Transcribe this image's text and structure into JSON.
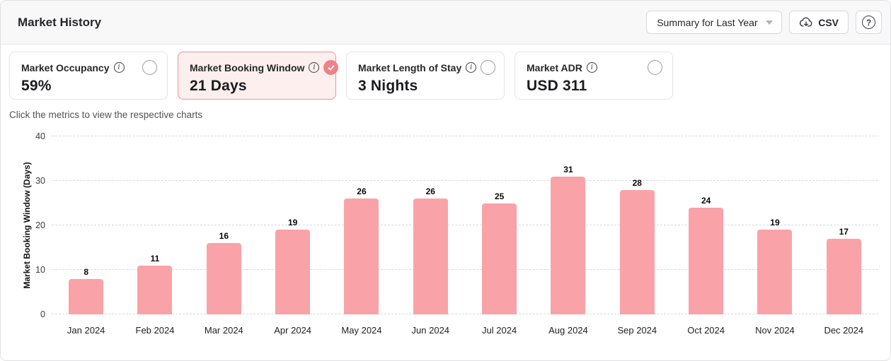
{
  "panel": {
    "title": "Market History"
  },
  "toolbar": {
    "period_dropdown": {
      "value": "Summary for Last Year"
    },
    "csv_button": {
      "label": "CSV"
    },
    "help_button": {
      "label": "?"
    }
  },
  "metrics": {
    "hint": "Click the metrics to view the respective charts",
    "cards": [
      {
        "label": "Market Occupancy",
        "value": "59%",
        "selected": false
      },
      {
        "label": "Market Booking Window",
        "value": "21 Days",
        "selected": true
      },
      {
        "label": "Market Length of Stay",
        "value": "3 Nights",
        "selected": false
      },
      {
        "label": "Market ADR",
        "value": "USD 311",
        "selected": false
      }
    ]
  },
  "chart_data": {
    "type": "bar",
    "title": "",
    "xlabel": "",
    "ylabel": "Market Booking Window (Days)",
    "categories": [
      "Jan 2024",
      "Feb 2024",
      "Mar 2024",
      "Apr 2024",
      "May 2024",
      "Jun 2024",
      "Jul 2024",
      "Aug 2024",
      "Sep 2024",
      "Oct 2024",
      "Nov 2024",
      "Dec 2024"
    ],
    "values": [
      8,
      11,
      16,
      19,
      26,
      26,
      25,
      31,
      28,
      24,
      19,
      17
    ],
    "ylim": [
      0,
      40
    ],
    "yticks": [
      0,
      10,
      20,
      30,
      40
    ],
    "grid": "horizontal-dashed",
    "legend": "none",
    "value_labels": true,
    "bar_color": "#f9a3a8"
  },
  "colors": {
    "accent_pink": "#ef8187",
    "bar_fill": "#f9a3a8",
    "selected_card_bg": "#fcefee",
    "selected_card_border": "#ef9296",
    "card_border": "#e4e4e7",
    "header_bg": "#f8f8f8",
    "panel_border": "#e0e0e3",
    "grid_line": "#d9d9dc",
    "text_primary": "#1c1c21",
    "text_secondary": "#52525b"
  }
}
